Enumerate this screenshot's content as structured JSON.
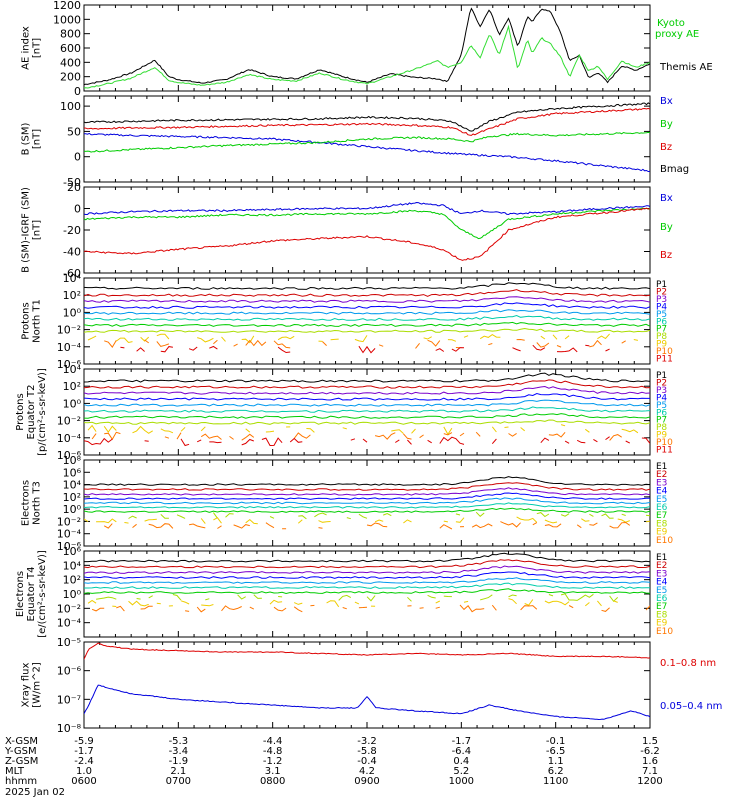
{
  "colors": {
    "black": "#000000",
    "green": "#00cc00",
    "blue": "#0000dd",
    "red": "#dd0000",
    "kyoto": "#33dd33",
    "bands": [
      "#000000",
      "#cc0000",
      "#7a00cc",
      "#0000ff",
      "#0099ee",
      "#00ccaa",
      "#00cc00",
      "#aadd00",
      "#eecc00",
      "#ff7700",
      "#dd0000"
    ]
  },
  "footer": {
    "date": "2025 Jan 02",
    "rows": [
      {
        "label": "X-GSM",
        "values": [
          "-5.9",
          "-5.3",
          "-4.4",
          "-3.2",
          "-1.7",
          "-0.1",
          "1.5"
        ]
      },
      {
        "label": "Y-GSM",
        "values": [
          "-1.7",
          "-3.4",
          "-4.8",
          "-5.8",
          "-6.4",
          "-6.5",
          "-6.2"
        ]
      },
      {
        "label": "Z-GSM",
        "values": [
          "-2.4",
          "-1.9",
          "-1.2",
          "-0.4",
          "0.4",
          "1.1",
          "1.6"
        ]
      },
      {
        "label": "MLT",
        "values": [
          "1.0",
          "2.1",
          "3.1",
          "4.2",
          "5.2",
          "6.2",
          "7.1"
        ]
      },
      {
        "label": "hhmm",
        "values": [
          "0600",
          "0700",
          "0800",
          "0900",
          "1000",
          "1100",
          "1200"
        ]
      }
    ]
  },
  "chart_data": [
    {
      "type": "line",
      "id": "ae",
      "ylabel": [
        "AE index",
        "[nT]"
      ],
      "ylim": [
        0,
        1200
      ],
      "yticks": [
        0,
        200,
        400,
        600,
        800,
        1000,
        1200
      ],
      "ytick_labels": [
        "0",
        "200",
        "400",
        "600",
        "800",
        "1000",
        "1200"
      ],
      "x_hours": [
        6,
        7,
        8,
        9,
        10,
        11,
        12
      ],
      "series": [
        {
          "name": "Themis AE",
          "color": "black",
          "x": [
            6.0,
            6.25,
            6.5,
            6.75,
            6.9,
            7.0,
            7.25,
            7.5,
            7.75,
            8.0,
            8.25,
            8.5,
            8.75,
            9.0,
            9.25,
            9.5,
            9.75,
            9.85,
            10.0,
            10.1,
            10.2,
            10.3,
            10.4,
            10.5,
            10.6,
            10.7,
            10.75,
            10.85,
            10.95,
            11.05,
            11.15,
            11.25,
            11.35,
            11.45,
            11.55,
            11.7,
            11.85,
            12.0
          ],
          "y": [
            90,
            150,
            250,
            430,
            200,
            160,
            110,
            160,
            300,
            200,
            170,
            300,
            200,
            120,
            240,
            190,
            170,
            130,
            500,
            1170,
            900,
            1150,
            780,
            1020,
            620,
            1040,
            960,
            1150,
            1100,
            820,
            420,
            500,
            180,
            260,
            120,
            350,
            290,
            380
          ]
        },
        {
          "name": "Kyoto proxy AE",
          "color": "kyoto",
          "x": [
            6.0,
            6.25,
            6.5,
            6.75,
            6.9,
            7.0,
            7.25,
            7.5,
            7.75,
            8.0,
            8.25,
            8.5,
            8.75,
            9.0,
            9.25,
            9.5,
            9.75,
            9.85,
            10.0,
            10.1,
            10.2,
            10.3,
            10.4,
            10.5,
            10.6,
            10.7,
            10.75,
            10.85,
            10.95,
            11.05,
            11.15,
            11.25,
            11.35,
            11.45,
            11.55,
            11.7,
            11.85,
            12.0
          ],
          "y": [
            40,
            100,
            180,
            330,
            150,
            120,
            80,
            120,
            230,
            160,
            140,
            250,
            160,
            100,
            200,
            300,
            420,
            330,
            400,
            640,
            470,
            800,
            500,
            900,
            300,
            720,
            520,
            740,
            650,
            480,
            200,
            500,
            280,
            350,
            160,
            420,
            330,
            400
          ]
        }
      ],
      "legend": [
        {
          "text": "Kyoto",
          "color": "green"
        },
        {
          "text": "proxy AE",
          "color": "green"
        },
        {
          "text": "Themis AE",
          "color": "black"
        }
      ]
    },
    {
      "type": "line",
      "id": "bsm",
      "ylabel": [
        "B (SM)",
        "[nT]"
      ],
      "ylim": [
        -50,
        120
      ],
      "yticks": [
        -50,
        0,
        50,
        100
      ],
      "ytick_labels": [
        "-50",
        "0",
        "50",
        "100"
      ],
      "series": [
        {
          "name": "Bx",
          "color": "blue",
          "x": [
            6.0,
            6.5,
            7.0,
            7.5,
            8.0,
            8.5,
            9.0,
            9.5,
            10.0,
            10.5,
            11.0,
            11.5,
            12.0
          ],
          "y": [
            45,
            42,
            40,
            38,
            35,
            28,
            20,
            12,
            5,
            0,
            -8,
            -18,
            -28
          ]
        },
        {
          "name": "By",
          "color": "green",
          "x": [
            6.0,
            6.5,
            7.0,
            7.5,
            8.0,
            8.5,
            9.0,
            9.5,
            9.9,
            10.1,
            10.3,
            10.6,
            11.0,
            11.5,
            12.0
          ],
          "y": [
            10,
            14,
            18,
            22,
            25,
            28,
            35,
            38,
            35,
            30,
            40,
            45,
            42,
            45,
            48
          ]
        },
        {
          "name": "Bz",
          "color": "red",
          "x": [
            6.0,
            6.5,
            7.0,
            7.5,
            8.0,
            8.5,
            9.0,
            9.5,
            9.9,
            10.1,
            10.3,
            10.6,
            11.0,
            11.5,
            12.0
          ],
          "y": [
            55,
            57,
            58,
            60,
            62,
            63,
            65,
            62,
            58,
            42,
            55,
            75,
            85,
            90,
            95
          ]
        },
        {
          "name": "Bmag",
          "color": "black",
          "x": [
            6.0,
            6.5,
            7.0,
            7.5,
            8.0,
            8.5,
            9.0,
            9.5,
            9.9,
            10.1,
            10.3,
            10.6,
            11.0,
            11.5,
            12.0
          ],
          "y": [
            68,
            70,
            72,
            73,
            74,
            75,
            78,
            76,
            70,
            50,
            70,
            88,
            95,
            100,
            105
          ]
        }
      ]
    },
    {
      "type": "line",
      "id": "bdiff",
      "ylabel": [
        "B (SM)-IGRF (SM)",
        "[nT]"
      ],
      "ylim": [
        -60,
        20
      ],
      "yticks": [
        -60,
        -40,
        -20,
        0,
        20
      ],
      "ytick_labels": [
        "-60",
        "-40",
        "-20",
        "0",
        "20"
      ],
      "series": [
        {
          "name": "Bx",
          "color": "blue",
          "x": [
            6.0,
            6.5,
            7.0,
            7.5,
            8.0,
            8.5,
            9.0,
            9.5,
            9.8,
            10.0,
            10.2,
            10.5,
            11.0,
            11.5,
            12.0
          ],
          "y": [
            -5,
            -3,
            -2,
            -2,
            -1,
            0,
            0,
            5,
            3,
            -5,
            -2,
            -5,
            -3,
            0,
            2
          ]
        },
        {
          "name": "By",
          "color": "green",
          "x": [
            6.0,
            6.5,
            7.0,
            7.5,
            8.0,
            8.5,
            9.0,
            9.5,
            9.8,
            10.0,
            10.2,
            10.5,
            11.0,
            11.5,
            12.0
          ],
          "y": [
            -10,
            -8,
            -8,
            -6,
            -6,
            -5,
            -5,
            -2,
            -5,
            -20,
            -28,
            -10,
            -5,
            -2,
            0
          ]
        },
        {
          "name": "Bz",
          "color": "red",
          "x": [
            6.0,
            6.5,
            7.0,
            7.5,
            8.0,
            8.5,
            9.0,
            9.5,
            9.8,
            10.0,
            10.2,
            10.5,
            11.0,
            11.5,
            12.0
          ],
          "y": [
            -40,
            -42,
            -38,
            -35,
            -30,
            -28,
            -26,
            -32,
            -38,
            -48,
            -45,
            -20,
            -8,
            -4,
            0
          ]
        }
      ]
    },
    {
      "type": "line",
      "id": "pn",
      "log": true,
      "ylabel": [
        "Protons",
        "North T1"
      ],
      "ylim": [
        -6,
        4
      ],
      "yticks": [
        -6,
        -4,
        -2,
        0,
        2,
        4
      ],
      "ytick_labels": [
        "10⁻⁶",
        "10⁻⁴",
        "10⁻²",
        "10⁰",
        "10²",
        "10⁴"
      ],
      "channels": [
        "P1",
        "P2",
        "P3",
        "P4",
        "P5",
        "P6",
        "P7",
        "P8",
        "P9",
        "P10",
        "P11"
      ],
      "bump_at": 10.6,
      "bump": 0.6,
      "levels": [
        2.8,
        2.0,
        1.3,
        0.6,
        -0.1,
        -0.8,
        -1.5,
        -2.2,
        -3.0,
        -3.7,
        -4.3
      ]
    },
    {
      "type": "line",
      "id": "pe",
      "log": true,
      "ylabel": [
        "Protons",
        "Equator T2",
        "[p/(cm²-s-sr-keV)]"
      ],
      "ylim": [
        -6,
        4
      ],
      "yticks": [
        -6,
        -4,
        -2,
        0,
        2,
        4
      ],
      "ytick_labels": [
        "10⁻⁶",
        "10⁻⁴",
        "10⁻²",
        "10⁰",
        "10²",
        "10⁴"
      ],
      "channels": [
        "P1",
        "P2",
        "P3",
        "P4",
        "P5",
        "P6",
        "P7",
        "P8",
        "P9",
        "P10",
        "P11"
      ],
      "bump_at": 10.9,
      "bump": 0.8,
      "levels": [
        2.6,
        1.9,
        1.2,
        0.5,
        -0.2,
        -0.9,
        -1.6,
        -2.3,
        -3.1,
        -3.8,
        -4.4
      ]
    },
    {
      "type": "line",
      "id": "en",
      "log": true,
      "ylabel": [
        "Electrons",
        "North T3"
      ],
      "ylim": [
        -6,
        8
      ],
      "yticks": [
        -6,
        -4,
        -2,
        0,
        2,
        4,
        6,
        8
      ],
      "ytick_labels": [
        "10⁻⁶",
        "10⁻⁴",
        "10⁻²",
        "10⁰",
        "10²",
        "10⁴",
        "10⁶",
        "10⁸"
      ],
      "channels": [
        "E1",
        "E2",
        "E3",
        "E4",
        "E5",
        "E6",
        "E7",
        "E8",
        "E9",
        "E10"
      ],
      "bump_at": 10.5,
      "bump": 1.2,
      "levels": [
        4.0,
        3.2,
        2.4,
        1.7,
        1.0,
        0.3,
        -0.4,
        -1.1,
        -1.9,
        -2.7
      ]
    },
    {
      "type": "line",
      "id": "ee",
      "log": true,
      "ylabel": [
        "Electrons",
        "Equator T4",
        "[e/(cm²-s-sr-keV)]"
      ],
      "ylim": [
        -6,
        6
      ],
      "yticks": [
        -4,
        -2,
        0,
        2,
        4,
        6
      ],
      "ytick_labels": [
        "10⁻⁴",
        "10⁻²",
        "10⁰",
        "10²",
        "10⁴",
        "10⁶"
      ],
      "channels": [
        "E1",
        "E2",
        "E3",
        "E4",
        "E5",
        "E6",
        "E7",
        "E8",
        "E9",
        "E10"
      ],
      "bump_at": 10.5,
      "bump": 1.0,
      "levels": [
        4.6,
        3.8,
        3.0,
        2.3,
        1.6,
        0.9,
        0.2,
        -0.5,
        -1.3,
        -2.0
      ]
    },
    {
      "type": "line",
      "id": "xray",
      "log": true,
      "ylabel": [
        "Xray flux",
        "[W/m^2]"
      ],
      "ylim": [
        -8,
        -5
      ],
      "yticks": [
        -8,
        -7,
        -6,
        -5
      ],
      "ytick_labels": [
        "10⁻⁸",
        "10⁻⁷",
        "10⁻⁶",
        "10⁻⁵"
      ],
      "series": [
        {
          "name": "0.1–0.8 nm",
          "color": "red",
          "x": [
            6.0,
            6.05,
            6.15,
            6.25,
            6.5,
            7.0,
            7.5,
            8.0,
            8.5,
            9.0,
            9.5,
            10.0,
            10.5,
            11.0,
            11.5,
            12.0
          ],
          "y": [
            -5.6,
            -5.25,
            -5.05,
            -5.15,
            -5.25,
            -5.3,
            -5.35,
            -5.35,
            -5.4,
            -5.45,
            -5.4,
            -5.45,
            -5.4,
            -5.5,
            -5.5,
            -5.55
          ]
        },
        {
          "name": "0.05–0.4 nm",
          "color": "blue",
          "x": [
            6.0,
            6.05,
            6.15,
            6.25,
            6.5,
            7.0,
            7.5,
            8.0,
            8.5,
            8.9,
            9.0,
            9.1,
            9.5,
            10.0,
            10.3,
            10.6,
            11.0,
            11.5,
            11.8,
            12.0
          ],
          "y": [
            -7.5,
            -7.2,
            -6.5,
            -6.6,
            -6.8,
            -7.0,
            -7.1,
            -7.2,
            -7.3,
            -7.3,
            -6.9,
            -7.3,
            -7.4,
            -7.5,
            -7.2,
            -7.4,
            -7.6,
            -7.7,
            -7.4,
            -7.6
          ]
        }
      ]
    }
  ]
}
